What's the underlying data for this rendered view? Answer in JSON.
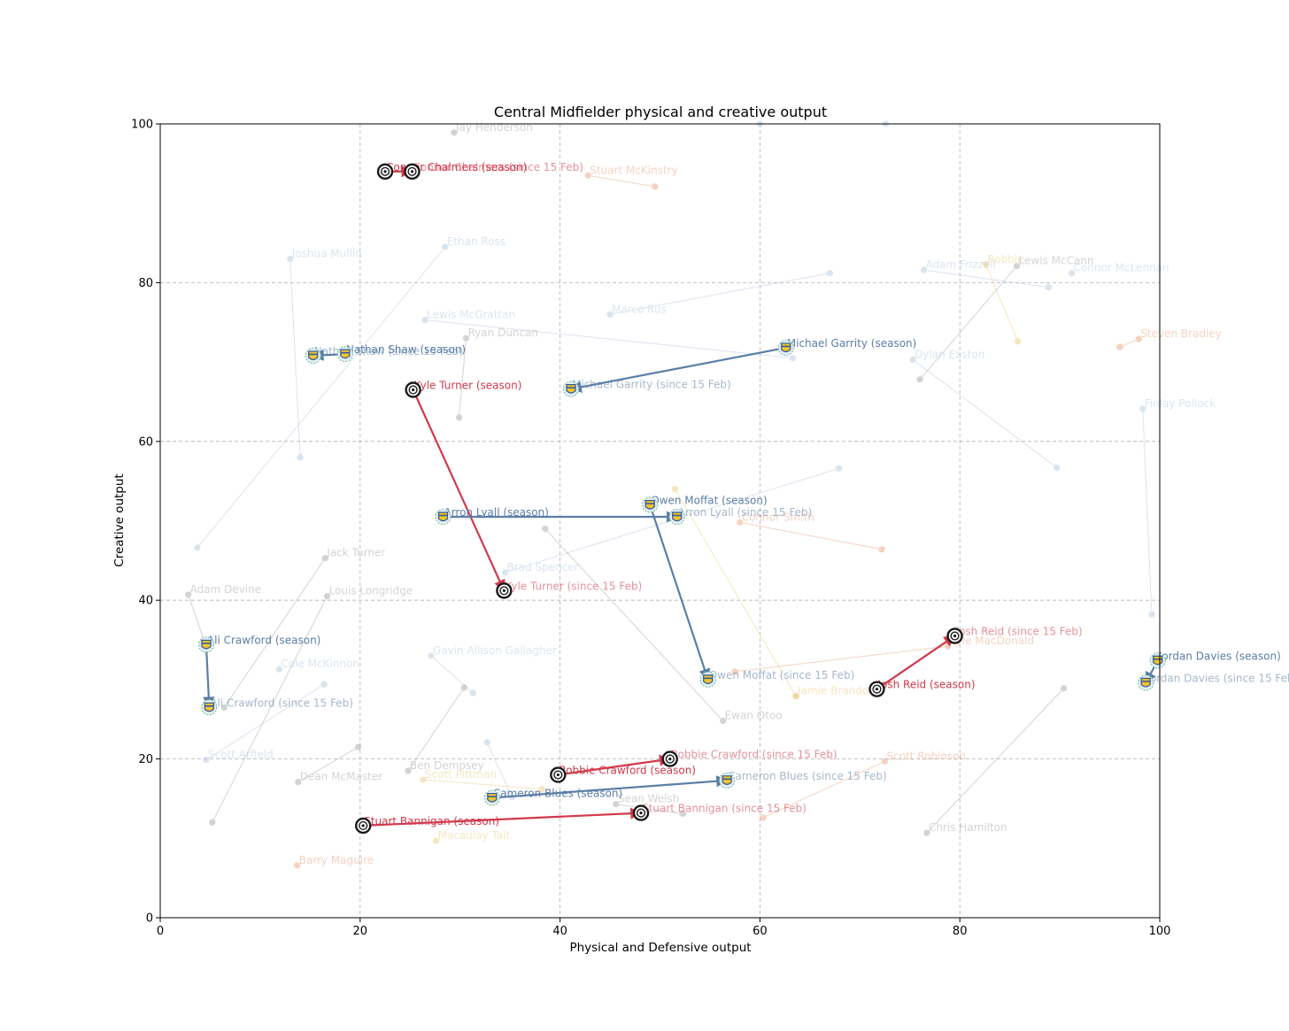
{
  "chart_data": {
    "type": "scatter",
    "title": "Central Midfielder physical and creative output",
    "xlabel": "Physical and Defensive output",
    "ylabel": "Creative output",
    "xlim": [
      0,
      100
    ],
    "ylim": [
      0,
      100
    ],
    "xticks": [
      0,
      20,
      40,
      60,
      80,
      100
    ],
    "yticks": [
      0,
      20,
      40,
      60,
      80,
      100
    ],
    "grid": true,
    "colors": {
      "red_team": "#d1394b",
      "blue_team": "#5b7ea6",
      "gray": "#999999",
      "orange": "#e8956e",
      "yellow": "#e8c66a",
      "lightblue": "#a8bfdb"
    },
    "highlighted": [
      {
        "team": "red_team",
        "badge": "red-crest-icon",
        "from": {
          "x": 22.5,
          "y": 94,
          "label": "Connor Chalmers (season)"
        },
        "to": {
          "x": 25.2,
          "y": 94,
          "label": "Connor Chalmers (since 15 Feb)"
        }
      },
      {
        "team": "red_team",
        "badge": "red-crest-icon",
        "from": {
          "x": 25.3,
          "y": 66.5,
          "label": "Kyle Turner (season)"
        },
        "to": {
          "x": 34.4,
          "y": 41.2,
          "label": "Kyle Turner (since 15 Feb)"
        }
      },
      {
        "team": "red_team",
        "badge": "red-crest-icon",
        "from": {
          "x": 71.7,
          "y": 28.8,
          "label": "Josh Reid (season)"
        },
        "to": {
          "x": 79.5,
          "y": 35.5,
          "label": "Josh Reid (since 15 Feb)"
        }
      },
      {
        "team": "red_team",
        "badge": "red-crest-icon",
        "from": {
          "x": 39.8,
          "y": 18,
          "label": "Robbie Crawford (season)"
        },
        "to": {
          "x": 51,
          "y": 20,
          "label": "Robbie Crawford (since 15 Feb)"
        }
      },
      {
        "team": "red_team",
        "badge": "red-crest-icon",
        "from": {
          "x": 20.3,
          "y": 11.6,
          "label": "Stuart Bannigan (season)"
        },
        "to": {
          "x": 48.1,
          "y": 13.2,
          "label": "Stuart Bannigan (since 15 Feb)"
        }
      },
      {
        "team": "blue_team",
        "badge": "blue-crest-icon",
        "from": {
          "x": 18.5,
          "y": 71,
          "label": "Nathan Shaw (season)"
        },
        "to": {
          "x": 15.3,
          "y": 70.8,
          "label": "Nathan Shaw (since 15 Feb)"
        }
      },
      {
        "team": "blue_team",
        "badge": "blue-crest-icon",
        "from": {
          "x": 62.6,
          "y": 71.8,
          "label": "Michael Garrity (season)"
        },
        "to": {
          "x": 41.1,
          "y": 66.6,
          "label": "Michael Garrity (since 15 Feb)"
        }
      },
      {
        "team": "blue_team",
        "badge": "blue-crest-icon",
        "from": {
          "x": 28.3,
          "y": 50.5,
          "label": "Arron Lyall (season)"
        },
        "to": {
          "x": 51.7,
          "y": 50.5,
          "label": "Arron Lyall (since 15 Feb)"
        }
      },
      {
        "team": "blue_team",
        "badge": "blue-crest-icon",
        "from": {
          "x": 49,
          "y": 52,
          "label": "Owen Moffat (season)"
        },
        "to": {
          "x": 54.8,
          "y": 30,
          "label": "Owen Moffat (since 15 Feb)"
        }
      },
      {
        "team": "blue_team",
        "badge": "blue-crest-icon",
        "from": {
          "x": 4.6,
          "y": 34.4,
          "label": "Ali Crawford (season)"
        },
        "to": {
          "x": 4.9,
          "y": 26.5,
          "label": "Ali Crawford (since 15 Feb)"
        }
      },
      {
        "team": "blue_team",
        "badge": "blue-crest-icon",
        "from": {
          "x": 99.8,
          "y": 32.4,
          "label": "Jordan Davies (season)"
        },
        "to": {
          "x": 98.6,
          "y": 29.6,
          "label": "Jordan Davies (since 15 Feb)"
        }
      },
      {
        "team": "blue_team",
        "badge": "blue-crest-icon",
        "from": {
          "x": 33.2,
          "y": 15.1,
          "label": "Cameron Blues (season)"
        },
        "to": {
          "x": 56.7,
          "y": 17.3,
          "label": "Cameron Blues (since 15 Feb)"
        }
      }
    ],
    "background": [
      {
        "color": "gray",
        "from": {
          "x": 29.4,
          "y": 98.9,
          "label": "Jay Henderson"
        },
        "to": null
      },
      {
        "color": "orange",
        "from": {
          "x": 42.8,
          "y": 93.5,
          "label": "Stuart McKinstry"
        },
        "to": {
          "x": 49.5,
          "y": 92.1
        }
      },
      {
        "color": "lightblue",
        "from": {
          "x": 28.5,
          "y": 84.5,
          "label": "Ethan Ross"
        },
        "to": {
          "x": 3.7,
          "y": 46.6
        }
      },
      {
        "color": "lightblue",
        "from": {
          "x": 13,
          "y": 83,
          "label": "Joshua Mullin"
        },
        "to": {
          "x": 14,
          "y": 58
        }
      },
      {
        "color": "lightblue",
        "from": {
          "x": 26.5,
          "y": 75.3,
          "label": "Lewis McGrattan"
        },
        "to": {
          "x": 63.3,
          "y": 70.5
        }
      },
      {
        "color": "lightblue",
        "from": {
          "x": 45,
          "y": 76,
          "label": "Marco Rus"
        },
        "to": {
          "x": 67,
          "y": 81.2
        }
      },
      {
        "color": "gray",
        "from": {
          "x": 30.6,
          "y": 73,
          "label": "Ryan Duncan"
        },
        "to": {
          "x": 29.9,
          "y": 63
        }
      },
      {
        "color": "lightblue",
        "from": {
          "x": 60,
          "y": 100,
          "label": ""
        },
        "to": {
          "x": 72.6,
          "y": 100
        }
      },
      {
        "color": "lightblue",
        "from": {
          "x": 76.4,
          "y": 81.6,
          "label": "Adam Frizzell"
        },
        "to": {
          "x": 88.9,
          "y": 79.4
        }
      },
      {
        "color": "yellow",
        "from": {
          "x": 82.6,
          "y": 82.3,
          "label": "Robbie"
        },
        "to": {
          "x": 85.8,
          "y": 72.6
        }
      },
      {
        "color": "gray",
        "from": {
          "x": 85.7,
          "y": 82.1,
          "label": "Lewis McCann"
        },
        "to": {
          "x": 76,
          "y": 67.8
        }
      },
      {
        "color": "lightblue",
        "from": {
          "x": 91.2,
          "y": 81.2,
          "label": "Connor McLennan"
        },
        "to": null
      },
      {
        "color": "orange",
        "from": {
          "x": 97.9,
          "y": 72.9,
          "label": "Steven Bradley"
        },
        "to": {
          "x": 96,
          "y": 71.9
        }
      },
      {
        "color": "lightblue",
        "from": {
          "x": 75.3,
          "y": 70.3,
          "label": "Dylan Easton"
        },
        "to": {
          "x": 89.7,
          "y": 56.7
        }
      },
      {
        "color": "lightblue",
        "from": {
          "x": 98.3,
          "y": 64.1,
          "label": "Finlay Pollock"
        },
        "to": {
          "x": 99.2,
          "y": 38.2
        }
      },
      {
        "color": "lightblue",
        "from": {
          "x": 34.5,
          "y": 43.5,
          "label": "Brad Spencer"
        },
        "to": {
          "x": 67.9,
          "y": 56.6
        }
      },
      {
        "color": "yellow",
        "from": {
          "x": 51.5,
          "y": 54,
          "label": ""
        },
        "to": {
          "x": 63.6,
          "y": 27.9
        }
      },
      {
        "color": "orange",
        "from": {
          "x": 58,
          "y": 49.8,
          "label": "Connor Smith"
        },
        "to": {
          "x": 72.2,
          "y": 46.4
        }
      },
      {
        "color": "gray",
        "from": {
          "x": 16.5,
          "y": 45.3,
          "label": "Jack Turner"
        },
        "to": {
          "x": 6.4,
          "y": 26.5
        }
      },
      {
        "color": "gray",
        "from": {
          "x": 16.7,
          "y": 40.5,
          "label": "Louis Longridge"
        },
        "to": {
          "x": 5.2,
          "y": 12
        }
      },
      {
        "color": "gray",
        "from": {
          "x": 2.8,
          "y": 40.7,
          "label": "Adam Devine"
        },
        "to": {
          "x": 4.5,
          "y": 34.5
        }
      },
      {
        "color": "gray",
        "from": {
          "x": 56.3,
          "y": 24.8,
          "label": "Ewan Otoo"
        },
        "to": {
          "x": 38.5,
          "y": 49
        }
      },
      {
        "color": "lightblue",
        "from": {
          "x": 27.1,
          "y": 33,
          "label": "Gavin Allison Gallagher"
        },
        "to": {
          "x": 31.3,
          "y": 28.3
        }
      },
      {
        "color": "lightblue",
        "from": {
          "x": 11.9,
          "y": 31.3,
          "label": "Cole McKinnon"
        },
        "to": null
      },
      {
        "color": "orange",
        "from": {
          "x": 78.8,
          "y": 34.2,
          "label": "Kyle MacDonald"
        },
        "to": {
          "x": 57.5,
          "y": 31
        }
      },
      {
        "color": "yellow",
        "from": {
          "x": 63.6,
          "y": 27.9,
          "label": "Jamie Brandon"
        },
        "to": null
      },
      {
        "color": "lightblue",
        "from": {
          "x": 4.6,
          "y": 19.9,
          "label": "Scott Arfield"
        },
        "to": {
          "x": 16.4,
          "y": 29.4
        }
      },
      {
        "color": "gray",
        "from": {
          "x": 13.8,
          "y": 17.1,
          "label": "Dean McMaster"
        },
        "to": {
          "x": 19.8,
          "y": 21.5
        }
      },
      {
        "color": "gray",
        "from": {
          "x": 24.8,
          "y": 18.5,
          "label": "Ben Dempsey"
        },
        "to": {
          "x": 30.4,
          "y": 29
        }
      },
      {
        "color": "yellow",
        "from": {
          "x": 26.3,
          "y": 17.4,
          "label": "Scott Pittman"
        },
        "to": {
          "x": 38.2,
          "y": 16.2
        }
      },
      {
        "color": "lightblue",
        "from": {
          "x": 32.7,
          "y": 22.1,
          "label": ""
        },
        "to": {
          "x": 35.2,
          "y": 15.2
        }
      },
      {
        "color": "gray",
        "from": {
          "x": 45.6,
          "y": 14.3,
          "label": "Sean Welsh"
        },
        "to": {
          "x": 52.3,
          "y": 13.1
        }
      },
      {
        "color": "orange",
        "from": {
          "x": 72.5,
          "y": 19.7,
          "label": "Scott Robinson"
        },
        "to": {
          "x": 60.3,
          "y": 12.6
        }
      },
      {
        "color": "gray",
        "from": {
          "x": 76.7,
          "y": 10.7,
          "label": "Chris Hamilton"
        },
        "to": {
          "x": 90.4,
          "y": 28.9
        }
      },
      {
        "color": "yellow",
        "from": {
          "x": 27.6,
          "y": 9.7,
          "label": "Macaulay Tait"
        },
        "to": null
      },
      {
        "color": "orange",
        "from": {
          "x": 13.7,
          "y": 6.6,
          "label": "Barry Maguire"
        },
        "to": null
      }
    ]
  }
}
